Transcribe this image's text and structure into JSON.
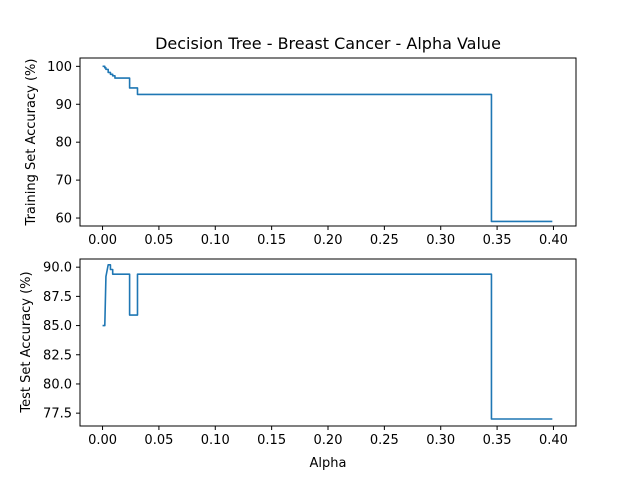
{
  "chart_data": [
    {
      "type": "line",
      "title": "Decision Tree - Breast Cancer - Alpha Value",
      "xlabel": "",
      "ylabel": "Training Set Accuracy (%)",
      "xlim": [
        -0.02,
        0.42
      ],
      "ylim": [
        57.9,
        102.2
      ],
      "grid": false,
      "line_color": "#1f77b4",
      "xticks": [
        {
          "v": 0.0,
          "label": "0.00"
        },
        {
          "v": 0.05,
          "label": "0.05"
        },
        {
          "v": 0.1,
          "label": "0.10"
        },
        {
          "v": 0.15,
          "label": "0.15"
        },
        {
          "v": 0.2,
          "label": "0.20"
        },
        {
          "v": 0.25,
          "label": "0.25"
        },
        {
          "v": 0.3,
          "label": "0.30"
        },
        {
          "v": 0.35,
          "label": "0.35"
        },
        {
          "v": 0.4,
          "label": "0.40"
        }
      ],
      "yticks": [
        {
          "v": 60,
          "label": "60"
        },
        {
          "v": 70,
          "label": "70"
        },
        {
          "v": 80,
          "label": "80"
        },
        {
          "v": 90,
          "label": "90"
        },
        {
          "v": 100,
          "label": "100"
        }
      ],
      "series": [
        {
          "x": [
            0.0,
            0.002,
            0.002,
            0.003,
            0.003,
            0.005,
            0.005,
            0.007,
            0.007,
            0.009,
            0.009,
            0.011,
            0.011,
            0.024,
            0.024,
            0.031,
            0.031,
            0.345,
            0.345,
            0.399
          ],
          "y": [
            100.0,
            100.0,
            99.6,
            99.6,
            99.2,
            99.2,
            98.4,
            98.4,
            97.9,
            97.9,
            97.5,
            97.5,
            96.9,
            96.9,
            94.3,
            94.3,
            92.6,
            92.6,
            59.1,
            59.1
          ]
        }
      ]
    },
    {
      "type": "line",
      "title": "",
      "xlabel": "Alpha",
      "ylabel": "Test Set Accuracy (%)",
      "xlim": [
        -0.02,
        0.42
      ],
      "ylim": [
        76.4,
        90.7
      ],
      "grid": false,
      "line_color": "#1f77b4",
      "xticks": [
        {
          "v": 0.0,
          "label": "0.00"
        },
        {
          "v": 0.05,
          "label": "0.05"
        },
        {
          "v": 0.1,
          "label": "0.10"
        },
        {
          "v": 0.15,
          "label": "0.15"
        },
        {
          "v": 0.2,
          "label": "0.20"
        },
        {
          "v": 0.25,
          "label": "0.25"
        },
        {
          "v": 0.3,
          "label": "0.30"
        },
        {
          "v": 0.35,
          "label": "0.35"
        },
        {
          "v": 0.4,
          "label": "0.40"
        }
      ],
      "yticks": [
        {
          "v": 77.5,
          "label": "77.5"
        },
        {
          "v": 80.0,
          "label": "80.0"
        },
        {
          "v": 82.5,
          "label": "82.5"
        },
        {
          "v": 85.0,
          "label": "85.0"
        },
        {
          "v": 87.5,
          "label": "87.5"
        },
        {
          "v": 90.0,
          "label": "90.0"
        }
      ],
      "series": [
        {
          "x": [
            0.0,
            0.002,
            0.003,
            0.005,
            0.007,
            0.007,
            0.009,
            0.009,
            0.024,
            0.024,
            0.031,
            0.031,
            0.345,
            0.345,
            0.399
          ],
          "y": [
            85.0,
            85.0,
            89.2,
            90.2,
            90.2,
            89.8,
            89.8,
            89.4,
            89.4,
            85.9,
            85.9,
            89.4,
            89.4,
            77.0,
            77.0
          ]
        }
      ]
    }
  ]
}
